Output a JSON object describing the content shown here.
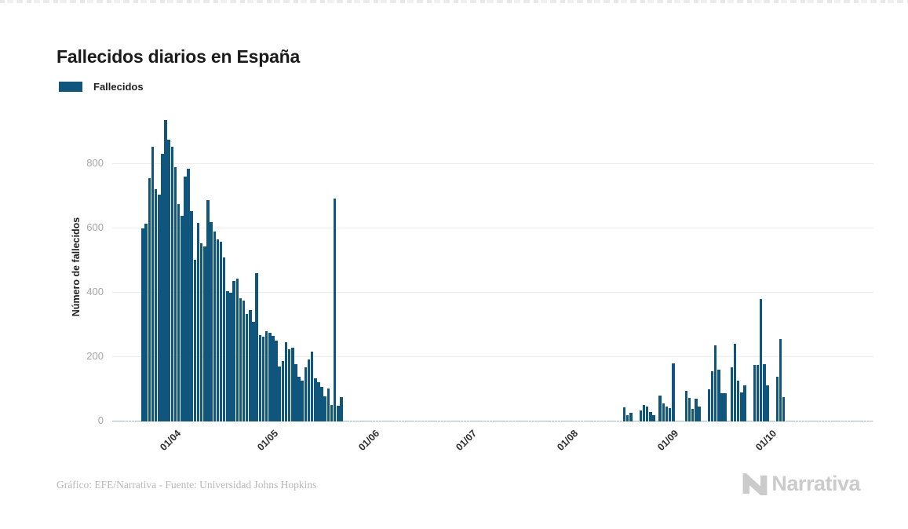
{
  "page": {
    "background": "#ffffff"
  },
  "header": {
    "title": "Fallecidos diarios en España"
  },
  "legend": {
    "items": [
      {
        "label": "Fallecidos",
        "color": "#10557c"
      }
    ]
  },
  "chart_data": {
    "type": "bar",
    "title": "Fallecidos diarios en España",
    "xlabel": "",
    "ylabel": "Número de fallecidos",
    "bar_color": "#10557c",
    "zero_day_marker_color": "#10557c",
    "grid": true,
    "legend_position": "top-left",
    "y_ticks": [
      0,
      200,
      400,
      600,
      800
    ],
    "y_max": 960,
    "x_ticks": [
      "01/04",
      "01/05",
      "01/06",
      "01/07",
      "01/08",
      "01/09",
      "01/10"
    ],
    "x_domain_start": "16/03",
    "x_domain_end": "05/11",
    "series": [
      {
        "name": "Fallecidos",
        "segments": [
          {
            "start": "25/03",
            "values": [
              600,
              615,
              756,
              852,
              721,
              704,
              830,
              935,
              875,
              852,
              790,
              676,
              639,
              760,
              784,
              653,
              503,
              617,
              554,
              543,
              688,
              619,
              590,
              565,
              558,
              510,
              405,
              400,
              437,
              444,
              383,
              375,
              334,
              345,
              310,
              460,
              269,
              263,
              281,
              275,
              265,
              250,
              171,
              188,
              245,
              224,
              230,
              177,
              139,
              127,
              168,
              192,
              216,
              134,
              122,
              107,
              78,
              103,
              50,
              692,
              48,
              75
            ]
          },
          {
            "start": "20/08",
            "values": [
              43,
              20,
              26,
              0,
              0,
              35,
              50,
              46,
              30,
              20,
              0,
              80,
              56,
              46,
              41,
              181,
              0,
              0,
              0,
              95,
              74,
              38,
              70,
              47,
              0,
              0,
              100,
              155,
              237,
              161,
              88,
              87,
              0,
              168,
              241,
              127,
              90,
              112,
              0,
              0,
              176,
              176,
              380,
              177,
              112,
              0,
              0,
              140,
              257,
              75
            ]
          }
        ]
      }
    ]
  },
  "footer": {
    "credit": "Gráfico: EFE/Narrativa - Fuente: Universidad Johns Hopkins",
    "logo_text": "Narrativa"
  }
}
